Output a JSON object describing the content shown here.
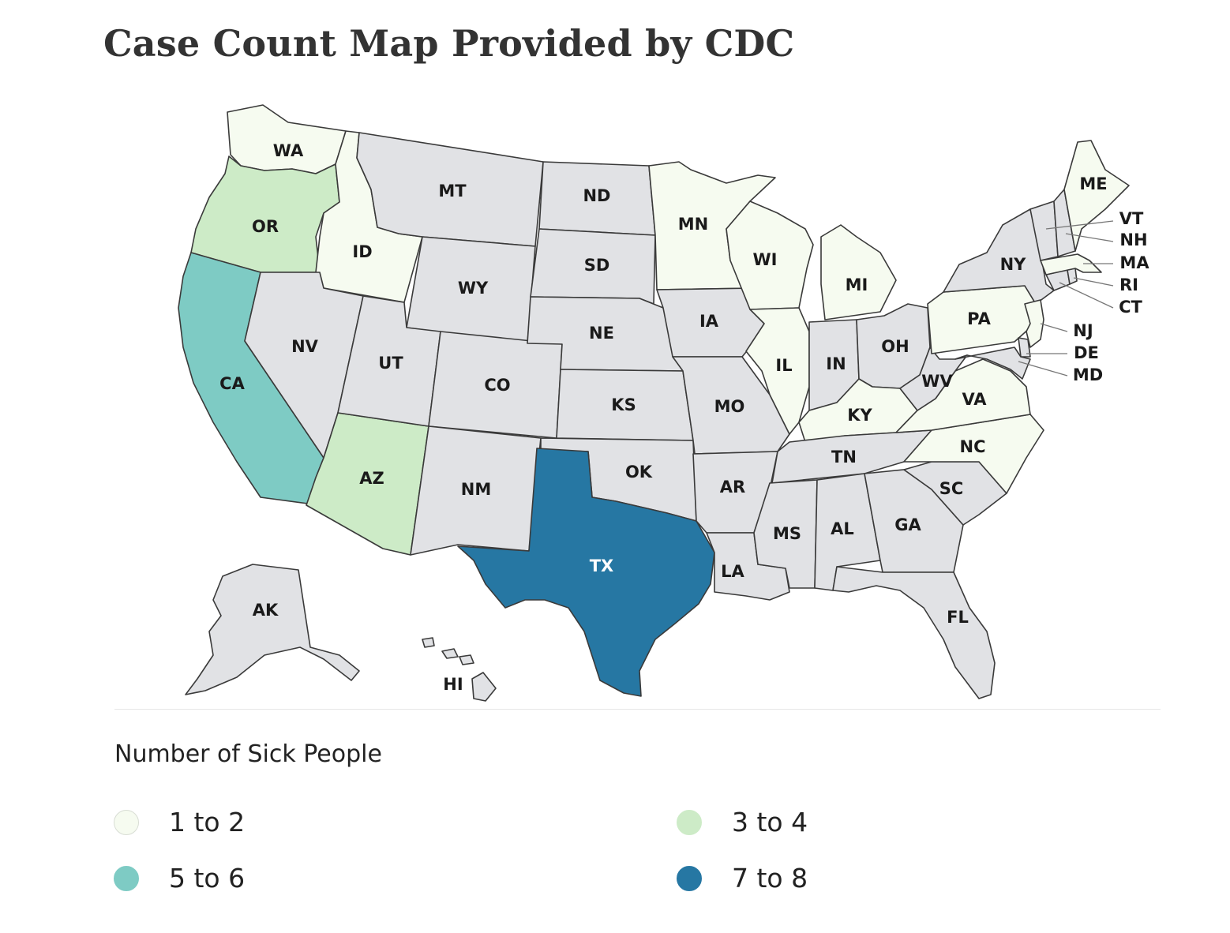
{
  "title": "Case Count Map Provided by CDC",
  "legend": {
    "title": "Number of Sick People",
    "items": [
      {
        "label": "1 to 2",
        "color": "#f6fbf0"
      },
      {
        "label": "3 to 4",
        "color": "#cdebc7"
      },
      {
        "label": "5 to 6",
        "color": "#7ecbc4"
      },
      {
        "label": "7 to 8",
        "color": "#2677a3"
      }
    ]
  },
  "colors": {
    "none": "#e1e2e5",
    "border": "#3a3a3a",
    "background": "#ffffff"
  },
  "states": {
    "WA": {
      "label": "WA",
      "category": 0
    },
    "OR": {
      "label": "OR",
      "category": 1
    },
    "CA": {
      "label": "CA",
      "category": 2
    },
    "ID": {
      "label": "ID",
      "category": 0
    },
    "NV": {
      "label": "NV",
      "category": null
    },
    "AZ": {
      "label": "AZ",
      "category": 1
    },
    "MT": {
      "label": "MT",
      "category": null
    },
    "WY": {
      "label": "WY",
      "category": null
    },
    "UT": {
      "label": "UT",
      "category": null
    },
    "CO": {
      "label": "CO",
      "category": null
    },
    "NM": {
      "label": "NM",
      "category": null
    },
    "ND": {
      "label": "ND",
      "category": null
    },
    "SD": {
      "label": "SD",
      "category": null
    },
    "NE": {
      "label": "NE",
      "category": null
    },
    "KS": {
      "label": "KS",
      "category": null
    },
    "OK": {
      "label": "OK",
      "category": null
    },
    "TX": {
      "label": "TX",
      "category": 3
    },
    "MN": {
      "label": "MN",
      "category": 0
    },
    "IA": {
      "label": "IA",
      "category": null
    },
    "MO": {
      "label": "MO",
      "category": null
    },
    "AR": {
      "label": "AR",
      "category": null
    },
    "LA": {
      "label": "LA",
      "category": null
    },
    "WI": {
      "label": "WI",
      "category": 0
    },
    "IL": {
      "label": "IL",
      "category": 0
    },
    "MI": {
      "label": "MI",
      "category": 0
    },
    "IN": {
      "label": "IN",
      "category": null
    },
    "OH": {
      "label": "OH",
      "category": null
    },
    "KY": {
      "label": "KY",
      "category": 0
    },
    "TN": {
      "label": "TN",
      "category": null
    },
    "MS": {
      "label": "MS",
      "category": null
    },
    "AL": {
      "label": "AL",
      "category": null
    },
    "GA": {
      "label": "GA",
      "category": null
    },
    "FL": {
      "label": "FL",
      "category": null
    },
    "SC": {
      "label": "SC",
      "category": null
    },
    "NC": {
      "label": "NC",
      "category": 0
    },
    "VA": {
      "label": "VA",
      "category": 0
    },
    "WV": {
      "label": "WV",
      "category": null
    },
    "PA": {
      "label": "PA",
      "category": 0
    },
    "NY": {
      "label": "NY",
      "category": null
    },
    "NJ": {
      "label": "NJ",
      "category": 0
    },
    "DE": {
      "label": "DE",
      "category": null
    },
    "MD": {
      "label": "MD",
      "category": null
    },
    "CT": {
      "label": "CT",
      "category": null
    },
    "RI": {
      "label": "RI",
      "category": null
    },
    "MA": {
      "label": "MA",
      "category": 0
    },
    "VT": {
      "label": "VT",
      "category": null
    },
    "NH": {
      "label": "NH",
      "category": null
    },
    "ME": {
      "label": "ME",
      "category": 0
    },
    "AK": {
      "label": "AK",
      "category": null
    },
    "HI": {
      "label": "HI",
      "category": null
    }
  }
}
